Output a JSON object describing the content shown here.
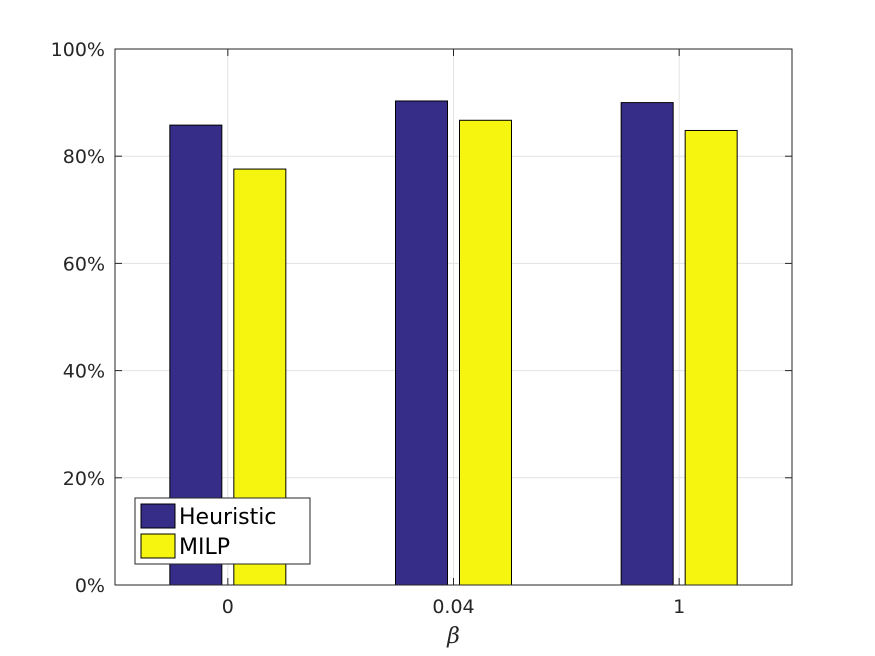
{
  "chart_data": {
    "type": "bar",
    "categories": [
      "0",
      "0.04",
      "1"
    ],
    "series": [
      {
        "name": "Heuristic",
        "values": [
          85.8,
          90.3,
          90.0
        ],
        "color": "#352d88"
      },
      {
        "name": "MILP",
        "values": [
          77.6,
          86.7,
          84.8
        ],
        "color": "#f5f50f"
      }
    ],
    "title": "",
    "xlabel": "β",
    "ylabel": "",
    "ylim": [
      0,
      100
    ],
    "yticks": [
      0,
      20,
      40,
      60,
      80,
      100
    ],
    "ytick_labels": [
      "0%",
      "20%",
      "40%",
      "60%",
      "80%",
      "100%"
    ],
    "grid": true,
    "legend_position": "bottom-left"
  }
}
